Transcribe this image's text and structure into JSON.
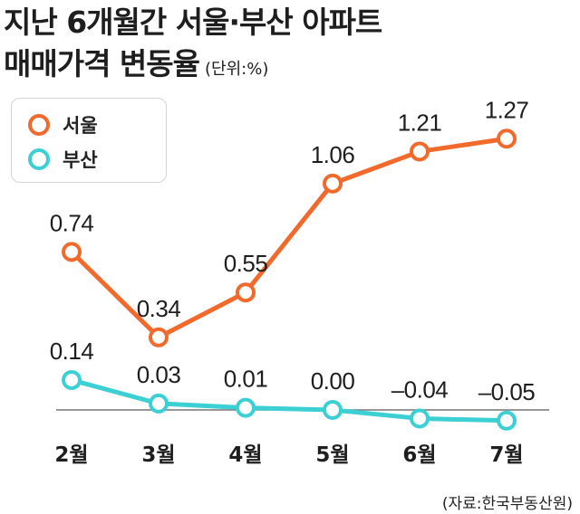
{
  "title_line1": "지난 6개월간 서울·부산 아파트",
  "title_line2": "매매가격 변동율",
  "unit": "(단위:%)",
  "source": "(자료:한국부동산원)",
  "colors": {
    "seoul": "#f26a2b",
    "busan": "#3ccfd3",
    "zero_line": "#777777"
  },
  "chart_data": {
    "type": "line",
    "categories": [
      "2월",
      "3월",
      "4월",
      "5월",
      "6월",
      "7월"
    ],
    "series": [
      {
        "name": "서울",
        "values": [
          0.74,
          0.34,
          0.55,
          1.06,
          1.21,
          1.27
        ],
        "labels": [
          "0.74",
          "0.34",
          "0.55",
          "1.06",
          "1.21",
          "1.27"
        ],
        "color": "#f26a2b"
      },
      {
        "name": "부산",
        "values": [
          0.14,
          0.03,
          0.01,
          0.0,
          -0.04,
          -0.05
        ],
        "labels": [
          "0.14",
          "0.03",
          "0.01",
          "0.00",
          "–0.04",
          "–0.05"
        ],
        "color": "#3ccfd3"
      }
    ],
    "title": "지난 6개월간 서울·부산 아파트 매매가격 변동율",
    "ylabel": "(단위:%)",
    "legend": "top-left",
    "grid": false
  }
}
